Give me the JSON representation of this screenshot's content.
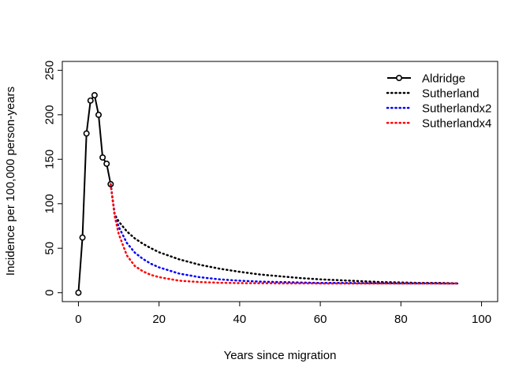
{
  "chart_data": {
    "type": "line",
    "title": "",
    "xlabel": "Years since migration",
    "ylabel": "Incidence per 100,000 person-years",
    "xlim": [
      -4,
      104
    ],
    "ylim": [
      -10,
      260
    ],
    "xticks": [
      0,
      20,
      40,
      60,
      80,
      100
    ],
    "yticks": [
      0,
      50,
      100,
      150,
      200,
      250
    ],
    "grid": false,
    "legend_position": "top-right",
    "series": [
      {
        "name": "Aldridge",
        "color": "#000000",
        "style": "solid-points",
        "x": [
          0,
          1,
          2,
          3,
          4,
          5,
          6,
          7,
          8
        ],
        "y": [
          0,
          62,
          179,
          216,
          222,
          200,
          152,
          145,
          122
        ]
      },
      {
        "name": "Sutherland",
        "color": "#000000",
        "style": "dotted",
        "x": [
          8,
          9,
          10,
          12,
          14,
          16,
          18,
          20,
          25,
          30,
          35,
          40,
          45,
          50,
          55,
          60,
          65,
          70,
          75,
          80,
          85,
          90,
          94
        ],
        "y": [
          122,
          88,
          80,
          69,
          61,
          55,
          50,
          45.5,
          37.5,
          31.5,
          27,
          23.5,
          20.5,
          18.5,
          16.5,
          15,
          14,
          13,
          12,
          11.5,
          11,
          11,
          10.5
        ]
      },
      {
        "name": "Sutherlandx2",
        "color": "#0000ff",
        "style": "dotted",
        "x": [
          8,
          9,
          10,
          12,
          14,
          16,
          18,
          20,
          25,
          30,
          35,
          40,
          45,
          50,
          55,
          60,
          65,
          70,
          75,
          80,
          85,
          90,
          94
        ],
        "y": [
          122,
          87,
          74,
          56,
          45,
          38,
          32.5,
          28.5,
          21.5,
          17.5,
          15,
          13.5,
          12.5,
          12,
          11.5,
          11,
          11,
          10.8,
          10.6,
          10.5,
          10.5,
          10.4,
          10.4
        ]
      },
      {
        "name": "Sutherlandx4",
        "color": "#ff0000",
        "style": "dotted",
        "x": [
          8,
          9,
          10,
          12,
          14,
          16,
          18,
          20,
          25,
          30,
          35,
          40,
          45,
          50,
          55,
          60,
          65,
          70,
          75,
          80,
          85,
          90,
          94
        ],
        "y": [
          122,
          86,
          66,
          42,
          30,
          24,
          20,
          17.5,
          13.5,
          12,
          11.2,
          10.8,
          10.6,
          10.5,
          10.5,
          10.4,
          10.4,
          10.4,
          10.4,
          10.4,
          10.4,
          10.4,
          10.4
        ]
      }
    ]
  }
}
